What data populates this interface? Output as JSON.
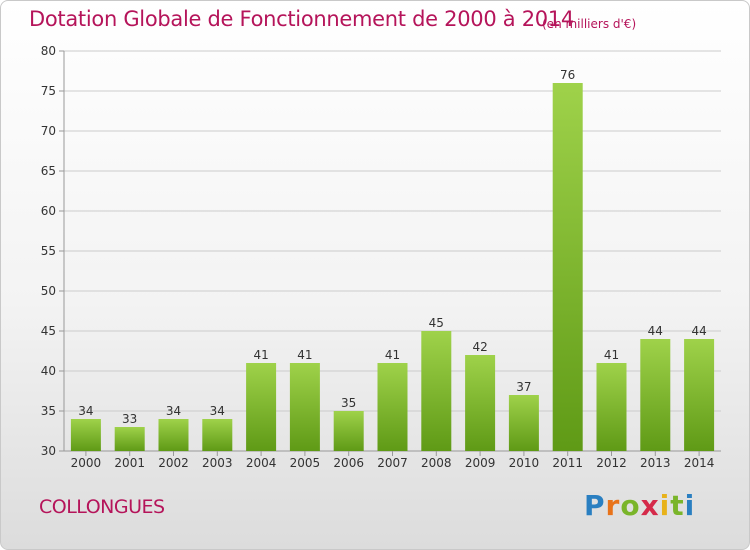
{
  "header": {
    "title": "Dotation Globale de Fonctionnement de 2000 à 2014",
    "unit": "(en milliers d'€)"
  },
  "footer": {
    "commune": "COLLONGUES",
    "logo_text": "Proxiti"
  },
  "colors": {
    "title": "#b5145a",
    "bar_light": "#9fd24a",
    "bar_dark": "#5f9a16",
    "grid": "#cccccc",
    "axis": "#999999"
  },
  "chart_data": {
    "type": "bar",
    "title": "Dotation Globale de Fonctionnement de 2000 à 2014",
    "subtitle": "(en milliers d'€)",
    "xlabel": "",
    "ylabel": "",
    "categories": [
      "2000",
      "2001",
      "2002",
      "2003",
      "2004",
      "2005",
      "2006",
      "2007",
      "2008",
      "2009",
      "2010",
      "2011",
      "2012",
      "2013",
      "2014"
    ],
    "values": [
      34,
      33,
      34,
      34,
      41,
      41,
      35,
      41,
      45,
      42,
      37,
      76,
      41,
      44,
      44
    ],
    "ylim": [
      30,
      80
    ],
    "yticks": [
      30,
      35,
      40,
      45,
      50,
      55,
      60,
      65,
      70,
      75,
      80
    ],
    "grid": true,
    "legend": "none"
  }
}
